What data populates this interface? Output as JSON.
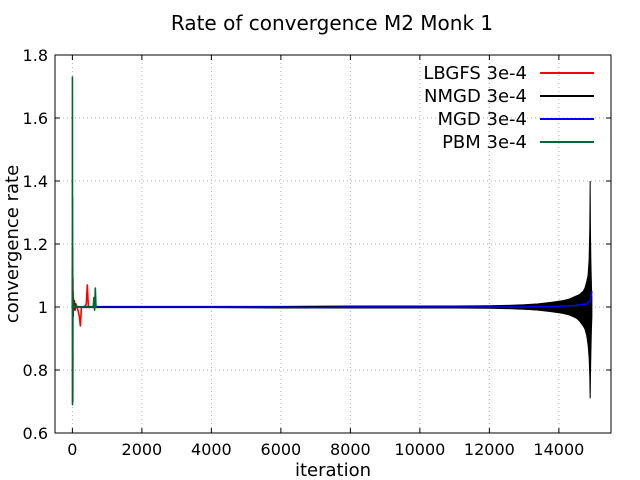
{
  "chart_data": {
    "type": "line",
    "title": "Rate of convergence M2 Monk 1",
    "xlabel": "iteration",
    "ylabel": "convergence rate",
    "xlim": [
      -500,
      15500
    ],
    "ylim": [
      0.6,
      1.8
    ],
    "xticks": [
      0,
      2000,
      4000,
      6000,
      8000,
      10000,
      12000,
      14000
    ],
    "yticks": [
      0.6,
      0.8,
      1,
      1.2,
      1.4,
      1.6,
      1.8
    ],
    "xtick_labels": [
      "0",
      "2000",
      "4000",
      "6000",
      "8000",
      "10000",
      "12000",
      "14000"
    ],
    "ytick_labels": [
      "0.6",
      "0.8",
      "1",
      "1.2",
      "1.4",
      "1.6",
      "1.8"
    ],
    "grid": true,
    "legend_position": "top-right",
    "series": [
      {
        "name": "LBGFS 3e-4",
        "color": "#ff0000",
        "x": [
          0,
          5,
          10,
          15,
          20,
          30,
          40,
          60,
          80,
          100,
          130,
          160,
          200,
          230,
          260,
          300,
          350,
          400,
          430,
          460,
          480,
          500,
          540,
          600,
          650,
          700
        ],
        "y": [
          1.0,
          1.19,
          0.98,
          1.09,
          0.99,
          1.03,
          1.0,
          1.02,
          0.99,
          1.01,
          1.0,
          0.99,
          0.97,
          0.94,
          1.0,
          1.0,
          1.0,
          1.01,
          1.07,
          1.0,
          1.0,
          1.0,
          1.0,
          1.0,
          1.0,
          1.0
        ]
      },
      {
        "name": "NMGD 3e-4",
        "color": "#000000",
        "x": [
          0,
          5,
          10,
          15,
          20,
          30,
          40,
          60,
          80,
          100,
          150,
          200,
          300,
          500,
          1000,
          2000,
          4000,
          6000,
          8000,
          10000,
          11000,
          12000,
          12500,
          13000,
          13400,
          13800,
          14100,
          14300,
          14500,
          14600,
          14700,
          14750,
          14800,
          14840,
          14870,
          14890,
          14900,
          14905,
          14910,
          14920,
          14930,
          14940,
          14950
        ],
        "y": [
          1.0,
          1.12,
          0.7,
          1.05,
          0.97,
          1.02,
          0.99,
          1.01,
          1.0,
          1.0,
          1.0,
          1.0,
          1.0,
          1.0,
          1.0,
          1.0,
          1.0,
          1.0,
          1.0,
          1.0,
          1.0,
          1.0,
          1.0,
          1.0,
          1.0,
          1.0,
          1.0,
          1.0,
          1.0,
          1.0,
          1.0,
          1.0,
          1.0,
          1.0,
          1.0,
          1.0,
          1.0,
          1.0,
          1.0,
          1.0,
          1.0,
          1.0,
          1.0
        ],
        "envelope_upper": [
          1.0,
          1.12,
          1.0,
          1.05,
          1.0,
          1.02,
          1.0,
          1.01,
          1.0,
          1.0,
          1.0,
          1.0,
          1.002,
          1.002,
          1.002,
          1.002,
          1.002,
          1.002,
          1.003,
          1.003,
          1.003,
          1.004,
          1.005,
          1.007,
          1.01,
          1.015,
          1.02,
          1.025,
          1.035,
          1.04,
          1.05,
          1.06,
          1.08,
          1.1,
          1.15,
          1.25,
          1.4,
          1.3,
          1.23,
          1.15,
          1.1,
          1.06,
          1.03
        ],
        "envelope_lower": [
          1.0,
          1.0,
          0.7,
          1.0,
          0.97,
          1.0,
          0.99,
          1.0,
          1.0,
          1.0,
          1.0,
          1.0,
          0.998,
          0.998,
          0.998,
          0.998,
          0.998,
          0.997,
          0.997,
          0.997,
          0.997,
          0.996,
          0.995,
          0.993,
          0.99,
          0.985,
          0.98,
          0.975,
          0.965,
          0.955,
          0.94,
          0.93,
          0.91,
          0.88,
          0.84,
          0.78,
          0.71,
          0.74,
          0.79,
          0.85,
          0.9,
          0.94,
          0.97
        ]
      },
      {
        "name": "MGD 3e-4",
        "color": "#0000ff",
        "x": [
          0,
          100,
          500,
          1000,
          2000,
          4000,
          6000,
          7000,
          8000,
          10000,
          12000,
          13000,
          14000,
          14500,
          14800,
          14900,
          14950
        ],
        "y": [
          1.0,
          1.0,
          1.0,
          1.0,
          1.0,
          1.0,
          1.0,
          0.998,
          1.0,
          1.0,
          1.0,
          1.0,
          1.002,
          1.005,
          1.01,
          1.02,
          1.05
        ]
      },
      {
        "name": "PBM 3e-4",
        "color": "#006633",
        "x": [
          0,
          2,
          4,
          6,
          8,
          10,
          15,
          20,
          30,
          40,
          60,
          80,
          100,
          150,
          200,
          300,
          400,
          500,
          600,
          620,
          640,
          660,
          680,
          700
        ],
        "y": [
          1.0,
          1.73,
          0.69,
          1.35,
          0.85,
          1.05,
          0.97,
          1.03,
          0.99,
          1.01,
          1.0,
          1.0,
          1.0,
          1.0,
          1.0,
          1.0,
          1.0,
          1.0,
          1.0,
          1.03,
          0.99,
          1.06,
          1.0,
          1.0
        ]
      }
    ]
  }
}
